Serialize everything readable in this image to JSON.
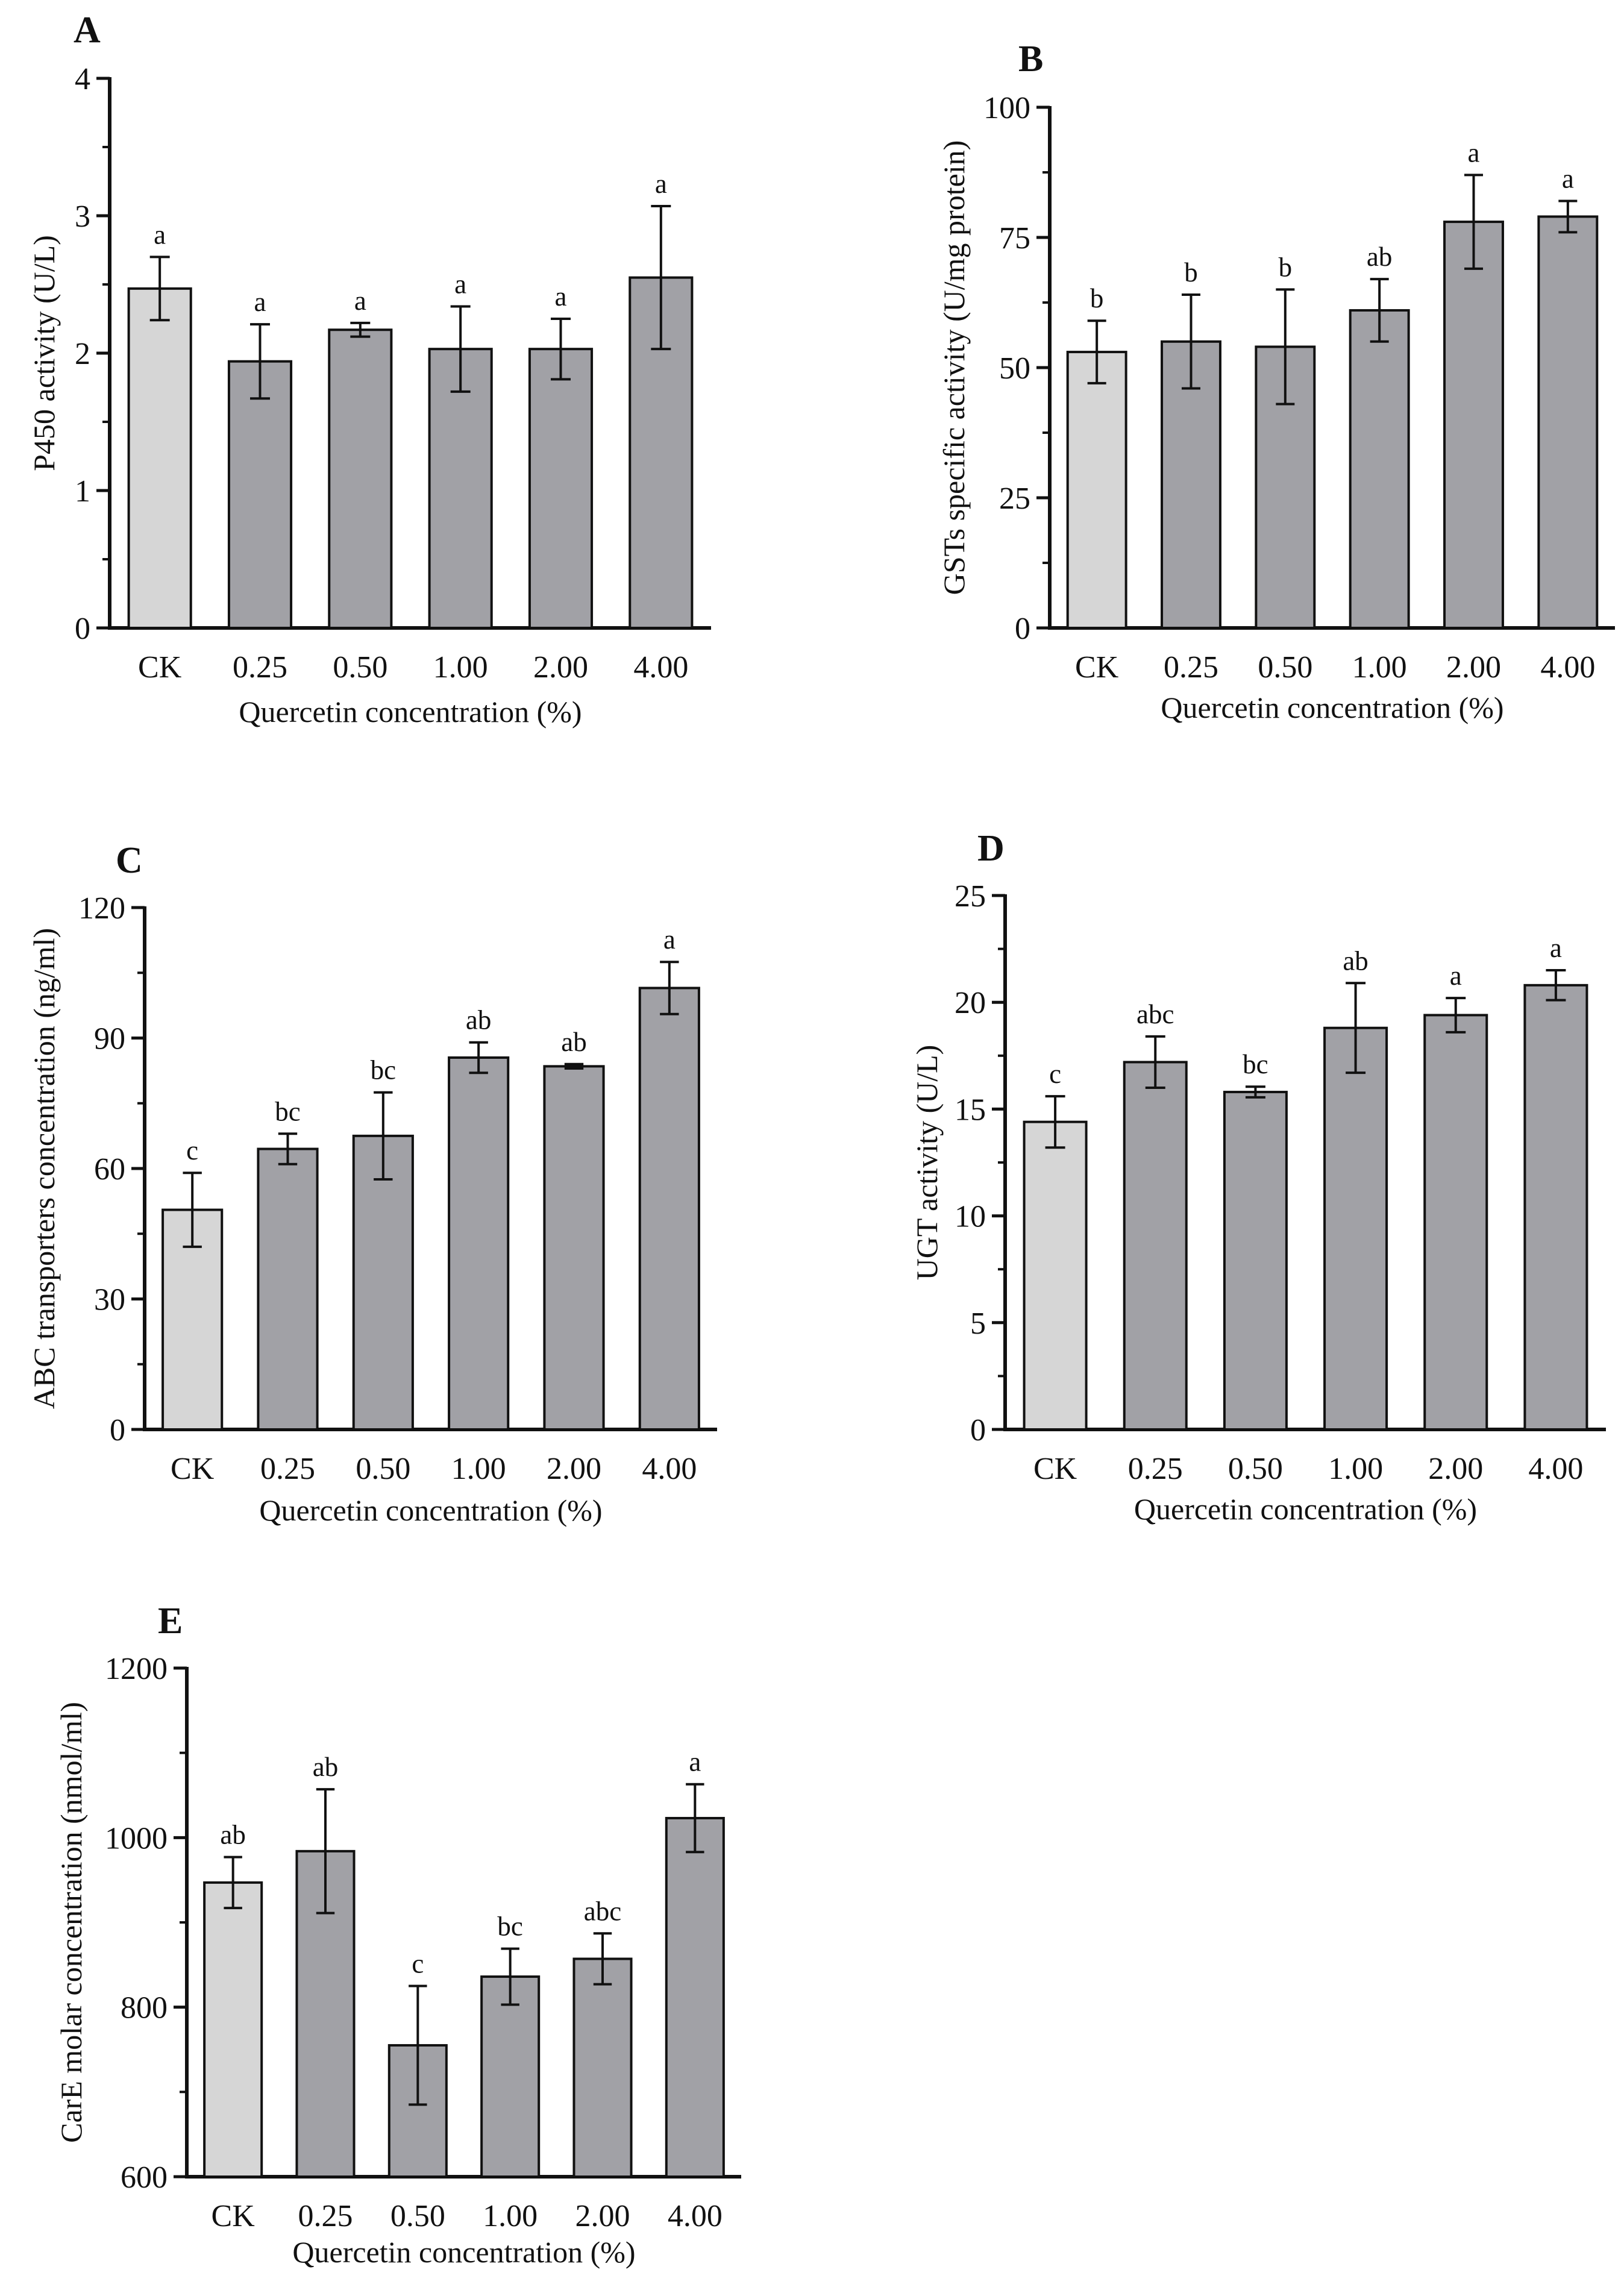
{
  "colors": {
    "control_bar": "#d6d6d6",
    "treatment_bar": "#a1a1a6",
    "stroke": "#111111"
  },
  "chart_data": [
    {
      "panel": "A",
      "type": "bar",
      "title": "",
      "xlabel": "Quercetin concentration (%)",
      "ylabel": "P450 activity (U/L)",
      "categories": [
        "CK",
        "0.25",
        "0.50",
        "1.00",
        "2.00",
        "4.00"
      ],
      "values": [
        2.47,
        1.94,
        2.17,
        2.03,
        2.03,
        2.55
      ],
      "errors": [
        0.23,
        0.27,
        0.05,
        0.31,
        0.22,
        0.52
      ],
      "significance": [
        "a",
        "a",
        "a",
        "a",
        "a",
        "a"
      ],
      "ylim": [
        0,
        4
      ],
      "yticks": [
        0,
        1,
        2,
        3,
        4
      ],
      "minor_ticks": 1
    },
    {
      "panel": "B",
      "type": "bar",
      "title": "",
      "xlabel": "Quercetin concentration (%)",
      "ylabel": "GSTs specific activity (U/mg protein)",
      "categories": [
        "CK",
        "0.25",
        "0.50",
        "1.00",
        "2.00",
        "4.00"
      ],
      "values": [
        53,
        55,
        54,
        61,
        78,
        79
      ],
      "errors": [
        6,
        9,
        11,
        6,
        9,
        3
      ],
      "significance": [
        "b",
        "b",
        "b",
        "ab",
        "a",
        "a"
      ],
      "ylim": [
        0,
        100
      ],
      "yticks": [
        0,
        25,
        50,
        75,
        100
      ],
      "minor_ticks": 1
    },
    {
      "panel": "C",
      "type": "bar",
      "title": "",
      "xlabel": "Quercetin concentration (%)",
      "ylabel": "ABC transporters concentration (ng/ml)",
      "categories": [
        "CK",
        "0.25",
        "0.50",
        "1.00",
        "2.00",
        "4.00"
      ],
      "values": [
        50.5,
        64.5,
        67.5,
        85.5,
        83.5,
        101.5
      ],
      "errors": [
        8.5,
        3.5,
        10.0,
        3.5,
        0.5,
        6.0
      ],
      "significance": [
        "c",
        "bc",
        "bc",
        "ab",
        "ab",
        "a"
      ],
      "ylim": [
        0,
        120
      ],
      "yticks": [
        0,
        30,
        60,
        90,
        120
      ],
      "minor_ticks": 1
    },
    {
      "panel": "D",
      "type": "bar",
      "title": "",
      "xlabel": "Quercetin concentration (%)",
      "ylabel": "UGT activity (U/L)",
      "categories": [
        "CK",
        "0.25",
        "0.50",
        "1.00",
        "2.00",
        "4.00"
      ],
      "values": [
        14.4,
        17.2,
        15.8,
        18.8,
        19.4,
        20.8
      ],
      "errors": [
        1.2,
        1.2,
        0.25,
        2.1,
        0.8,
        0.7
      ],
      "significance": [
        "c",
        "abc",
        "bc",
        "ab",
        "a",
        "a"
      ],
      "ylim": [
        0,
        25
      ],
      "yticks": [
        0,
        5,
        10,
        15,
        20,
        25
      ],
      "minor_ticks": 1
    },
    {
      "panel": "E",
      "type": "bar",
      "title": "",
      "xlabel": "Quercetin concentration (%)",
      "ylabel": "CarE molar concentration (nmol/ml)",
      "categories": [
        "CK",
        "0.25",
        "0.50",
        "1.00",
        "2.00",
        "4.00"
      ],
      "values": [
        947,
        984,
        755,
        836,
        857,
        1023
      ],
      "errors": [
        30,
        73,
        70,
        33,
        30,
        40
      ],
      "significance": [
        "ab",
        "ab",
        "c",
        "bc",
        "abc",
        "a"
      ],
      "ylim": [
        600,
        1200
      ],
      "yticks": [
        600,
        800,
        1000,
        1200
      ],
      "minor_ticks": 1
    }
  ]
}
